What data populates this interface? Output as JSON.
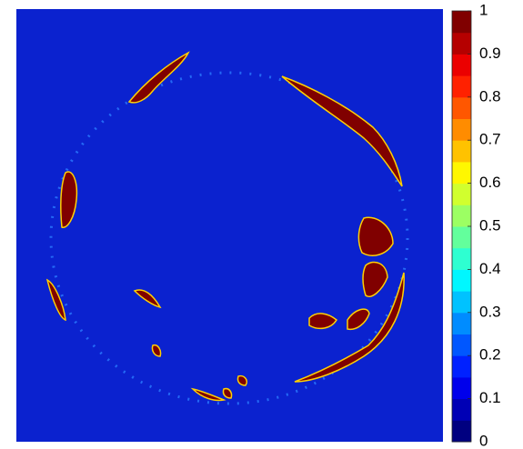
{
  "chart_data": {
    "type": "heatmap",
    "colorbar": {
      "ylim": [
        0,
        1
      ],
      "yticks": [
        0,
        0.1,
        0.2,
        0.3,
        0.4,
        0.5,
        0.6,
        0.7,
        0.8,
        0.9,
        1
      ],
      "colors": [
        "#000080",
        "#0000b5",
        "#0000eb",
        "#0021ff",
        "#0057ff",
        "#008cff",
        "#00c2ff",
        "#00f7ff",
        "#2effd1",
        "#63ff9c",
        "#9cff63",
        "#d1ff2e",
        "#fff700",
        "#ffc200",
        "#ff8c00",
        "#ff5700",
        "#ff2100",
        "#eb0000",
        "#b50000",
        "#800000"
      ]
    }
  }
}
